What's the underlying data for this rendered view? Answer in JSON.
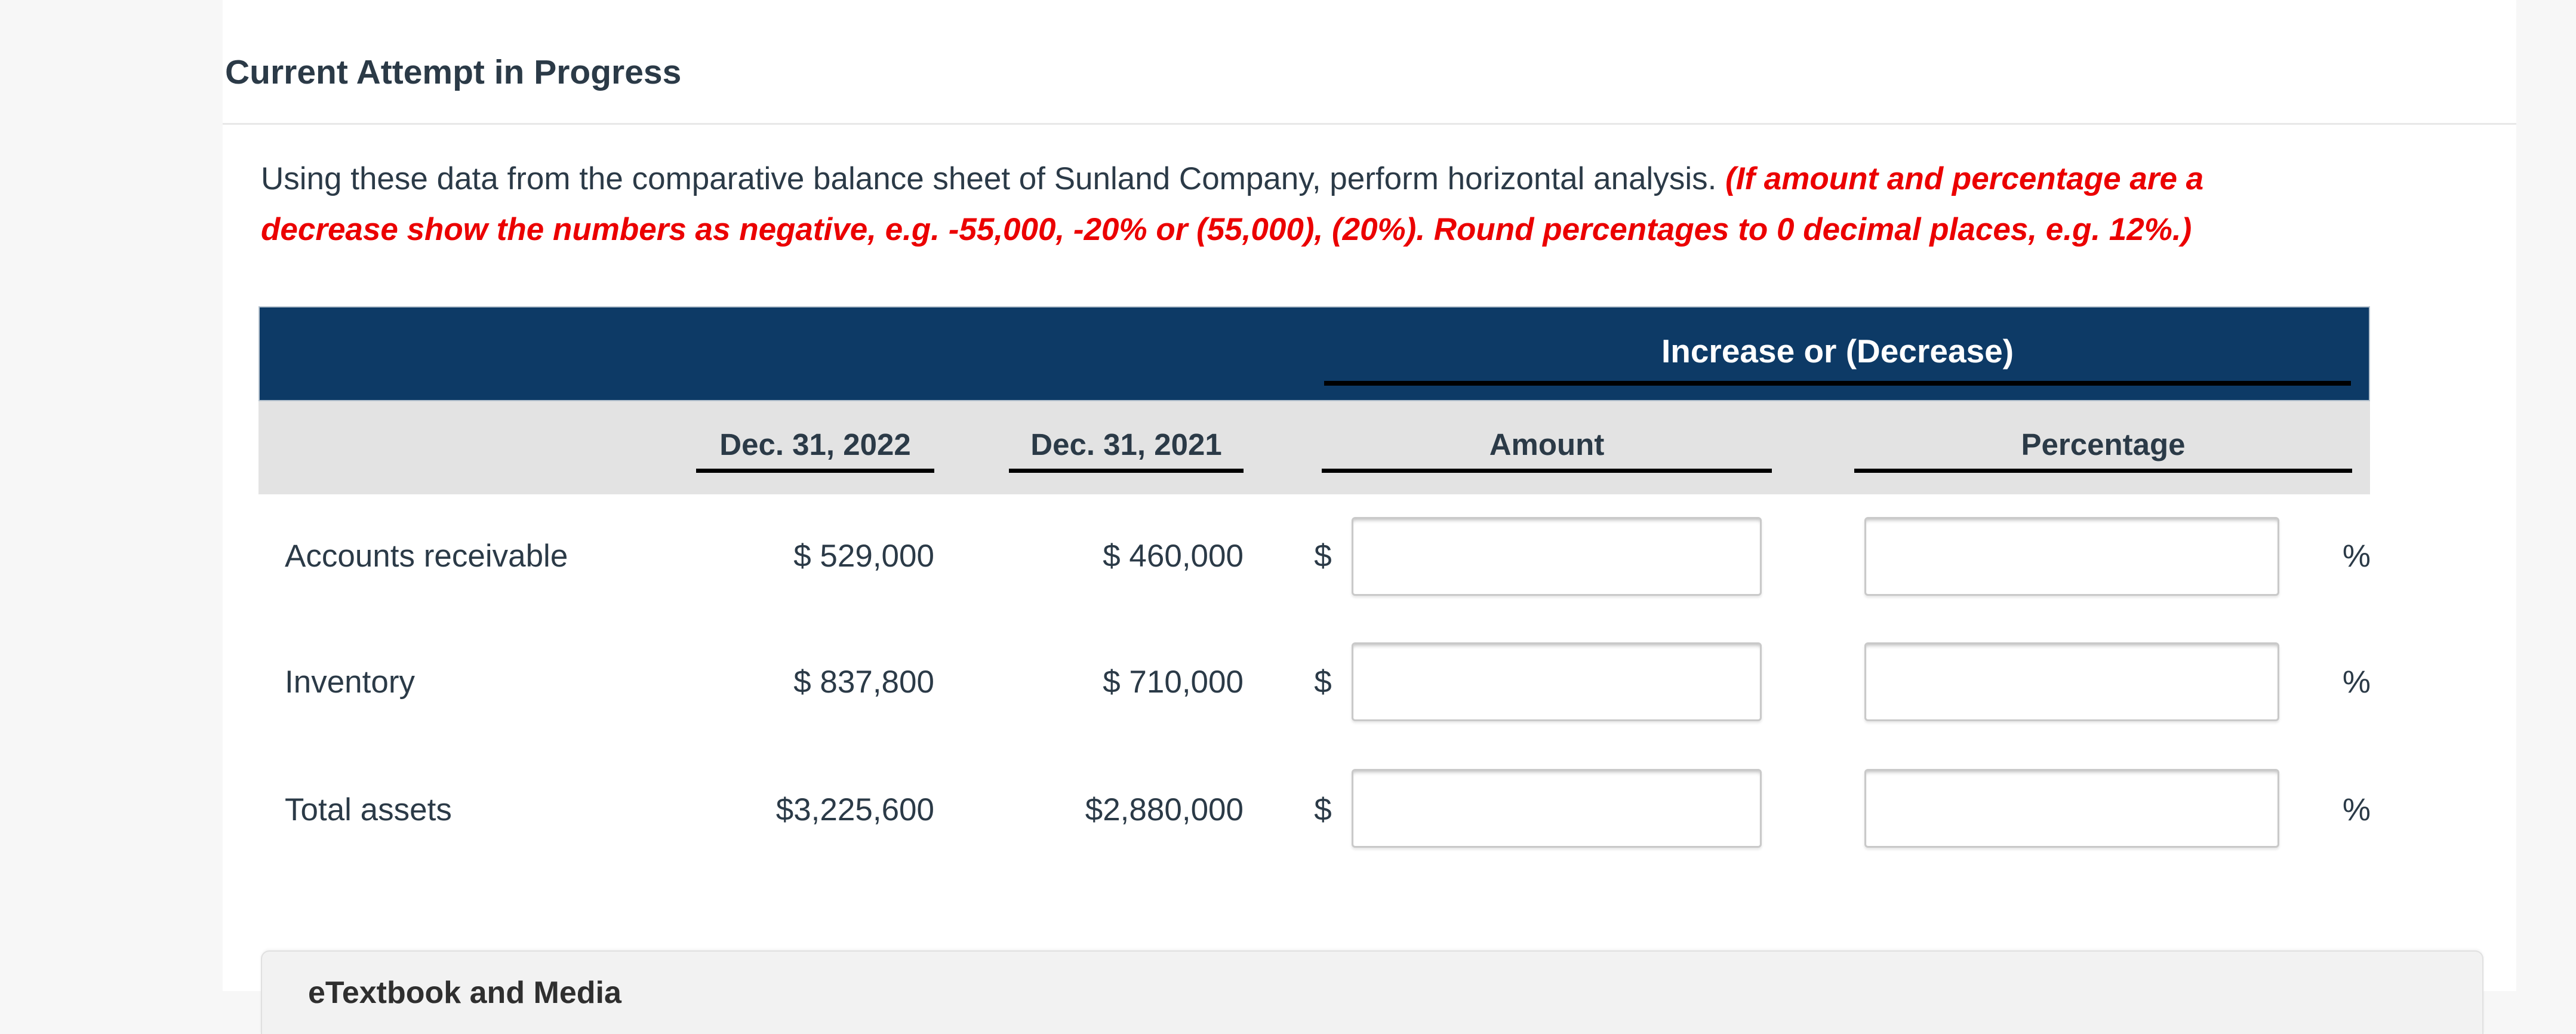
{
  "colors": {
    "header_navy": "#0d3a66",
    "warning_red": "#eb0000",
    "text_dark": "#2b3a47",
    "header_row_gray": "#e3e3e3",
    "page_margin_gray": "#f7f7f7",
    "underline_black": "#000000"
  },
  "page": {
    "title": "Current Attempt in Progress"
  },
  "instructions": {
    "normal_part": "Using these data from the comparative balance sheet of Sunland Company, perform horizontal analysis. ",
    "warning_line1": "(If amount and percentage are a",
    "warning_line2": "decrease show the numbers as negative, e.g. -55,000, -20% or (55,000), (20%). Round percentages to 0 decimal places, e.g. 12%.)"
  },
  "table": {
    "group_header": "Increase or (Decrease)",
    "col_2022": "Dec. 31, 2022",
    "col_2021": "Dec. 31, 2021",
    "col_amount": "Amount",
    "col_percentage": "Percentage",
    "rows": [
      {
        "label": "Accounts receivable",
        "value_2022": "$ 529,000",
        "value_2021": "$ 460,000",
        "currency_symbol": "$",
        "percent_symbol": "%",
        "amount_input_value": "",
        "percent_input_value": ""
      },
      {
        "label": "Inventory",
        "value_2022": "$ 837,800",
        "value_2021": "$ 710,000",
        "currency_symbol": "$",
        "percent_symbol": "%",
        "amount_input_value": "",
        "percent_input_value": ""
      },
      {
        "label": "Total assets",
        "value_2022": "$3,225,600",
        "value_2021": "$2,880,000",
        "currency_symbol": "$",
        "percent_symbol": "%",
        "amount_input_value": "",
        "percent_input_value": ""
      }
    ]
  },
  "footer": {
    "etextbook_label": "eTextbook and Media"
  }
}
